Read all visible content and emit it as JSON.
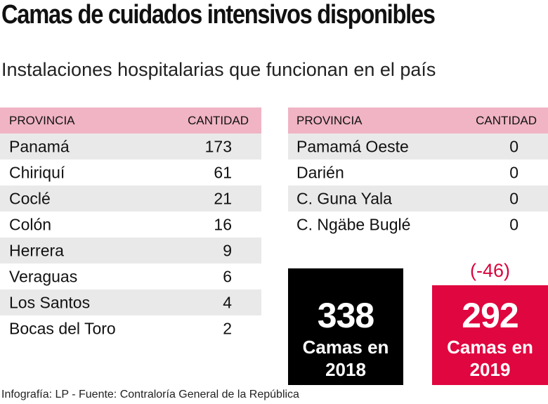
{
  "header": {
    "title": "Camas de cuidados intensivos disponibles",
    "subtitle": "Instalaciones hospitalarias que funcionan en el país"
  },
  "tables": [
    {
      "columns": [
        "PROVINCIA",
        "CANTIDAD"
      ],
      "rows": [
        [
          "Panamá",
          173
        ],
        [
          "Chiriquí",
          61
        ],
        [
          "Coclé",
          21
        ],
        [
          "Colón",
          16
        ],
        [
          "Herrera",
          9
        ],
        [
          "Veraguas",
          6
        ],
        [
          "Los Santos",
          4
        ],
        [
          "Bocas del Toro",
          2
        ]
      ]
    },
    {
      "columns": [
        "PROVINCIA",
        "CANTIDAD"
      ],
      "rows": [
        [
          "Pamamá Oeste",
          0
        ],
        [
          "Darién",
          0
        ],
        [
          "C. Guna Yala",
          0
        ],
        [
          "C. Ngäbe Buglé",
          0
        ]
      ]
    }
  ],
  "totals": [
    {
      "value": 338,
      "label": "Camas en",
      "year": "2018"
    },
    {
      "change": "(-46)",
      "value": 292,
      "label": "Camas en",
      "year": "2019"
    }
  ],
  "footer": "Infografía: LP - Fuente: Contraloría General de la República"
}
